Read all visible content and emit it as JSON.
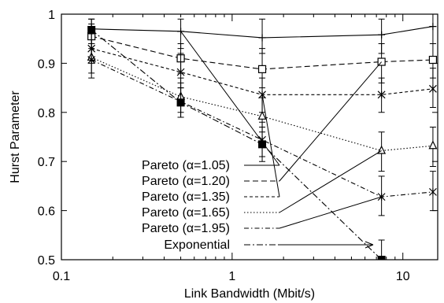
{
  "chart_data": {
    "type": "line",
    "title": "",
    "xlabel": "Link Bandwidth (Mbit/s)",
    "ylabel": "Hurst Parameter",
    "xscale": "log",
    "xlim": [
      0.1,
      16
    ],
    "ylim": [
      0.5,
      1.0
    ],
    "x_ticks": [
      0.1,
      1,
      10
    ],
    "x_tick_labels": [
      "0.1",
      "1",
      "10"
    ],
    "y_ticks": [
      0.5,
      0.6,
      0.7,
      0.8,
      0.9,
      1.0
    ],
    "y_tick_labels": [
      "0.5",
      "0.6",
      "0.7",
      "0.8",
      "0.9",
      "1"
    ],
    "grid": false,
    "legend_position": "bottom-left",
    "x": [
      0.15,
      0.5,
      1.5,
      7.5,
      15
    ],
    "series": [
      {
        "name": "Pareto (α=1.05)",
        "dash": "solid",
        "marker": "plus",
        "values": [
          0.97,
          0.965,
          0.952,
          0.958,
          0.975
        ],
        "err": [
          [
            0.94,
            0.99
          ],
          [
            0.93,
            0.99
          ],
          [
            0.92,
            0.99
          ],
          [
            0.92,
            0.99
          ],
          [
            0.94,
            1.0
          ]
        ]
      },
      {
        "name": "Pareto (α=1.20)",
        "dash": "long-dash",
        "marker": "open-square",
        "values": [
          0.955,
          0.91,
          0.888,
          0.903,
          0.907
        ],
        "err": [
          [
            0.93,
            0.98
          ],
          [
            0.88,
            0.94
          ],
          [
            0.85,
            0.93
          ],
          [
            0.86,
            0.94
          ],
          [
            0.87,
            0.94
          ]
        ]
      },
      {
        "name": "Pareto (α=1.35)",
        "dash": "short-dash",
        "marker": "asterisk",
        "values": [
          0.93,
          0.882,
          0.836,
          0.836,
          0.848
        ],
        "err": [
          [
            0.9,
            0.96
          ],
          [
            0.85,
            0.92
          ],
          [
            0.8,
            0.87
          ],
          [
            0.8,
            0.87
          ],
          [
            0.81,
            0.89
          ]
        ]
      },
      {
        "name": "Pareto (α=1.65)",
        "dash": "dotted",
        "marker": "open-triangle",
        "values": [
          0.912,
          0.832,
          0.792,
          0.722,
          0.732
        ],
        "err": [
          [
            0.88,
            0.94
          ],
          [
            0.8,
            0.87
          ],
          [
            0.76,
            0.83
          ],
          [
            0.68,
            0.76
          ],
          [
            0.69,
            0.77
          ]
        ]
      },
      {
        "name": "Pareto (α=1.95)",
        "dash": "dash-dot",
        "marker": "asterisk",
        "values": [
          0.907,
          0.822,
          0.744,
          0.628,
          0.638
        ],
        "err": [
          [
            0.87,
            0.94
          ],
          [
            0.79,
            0.86
          ],
          [
            0.71,
            0.78
          ],
          [
            0.59,
            0.67
          ],
          [
            0.6,
            0.68
          ]
        ]
      },
      {
        "name": "Exponential",
        "dash": "dash-dot-long",
        "marker": "filled-square",
        "x": [
          0.15,
          0.5,
          1.5,
          7.5
        ],
        "values": [
          0.968,
          0.82,
          0.735,
          0.5
        ],
        "err": [
          [
            0.94,
            0.99
          ],
          [
            0.79,
            0.85
          ],
          [
            0.7,
            0.77
          ],
          [
            0.46,
            0.54
          ]
        ]
      }
    ]
  }
}
